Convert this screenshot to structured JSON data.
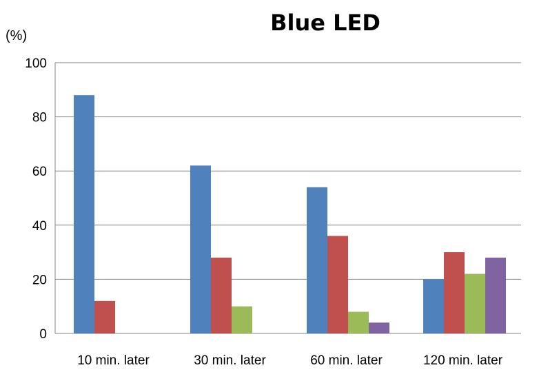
{
  "chart_data": {
    "type": "bar",
    "title": "Blue LED",
    "ylabel": "(%)",
    "xlabel": "",
    "categories": [
      "10 min. later",
      "30 min. later",
      "60 min. later",
      "120 min. later"
    ],
    "ylim": [
      0,
      100
    ],
    "yticks": [
      0,
      20,
      40,
      60,
      80,
      100
    ],
    "grid": true,
    "legend": "none",
    "series": [
      {
        "color": "#4F81BD",
        "values": [
          88,
          62,
          54,
          20
        ]
      },
      {
        "color": "#C0504D",
        "values": [
          12,
          28,
          36,
          30
        ]
      },
      {
        "color": "#9BBB59",
        "values": [
          0,
          10,
          8,
          22
        ]
      },
      {
        "color": "#8064A2",
        "values": [
          0,
          0,
          4,
          28
        ]
      }
    ]
  }
}
